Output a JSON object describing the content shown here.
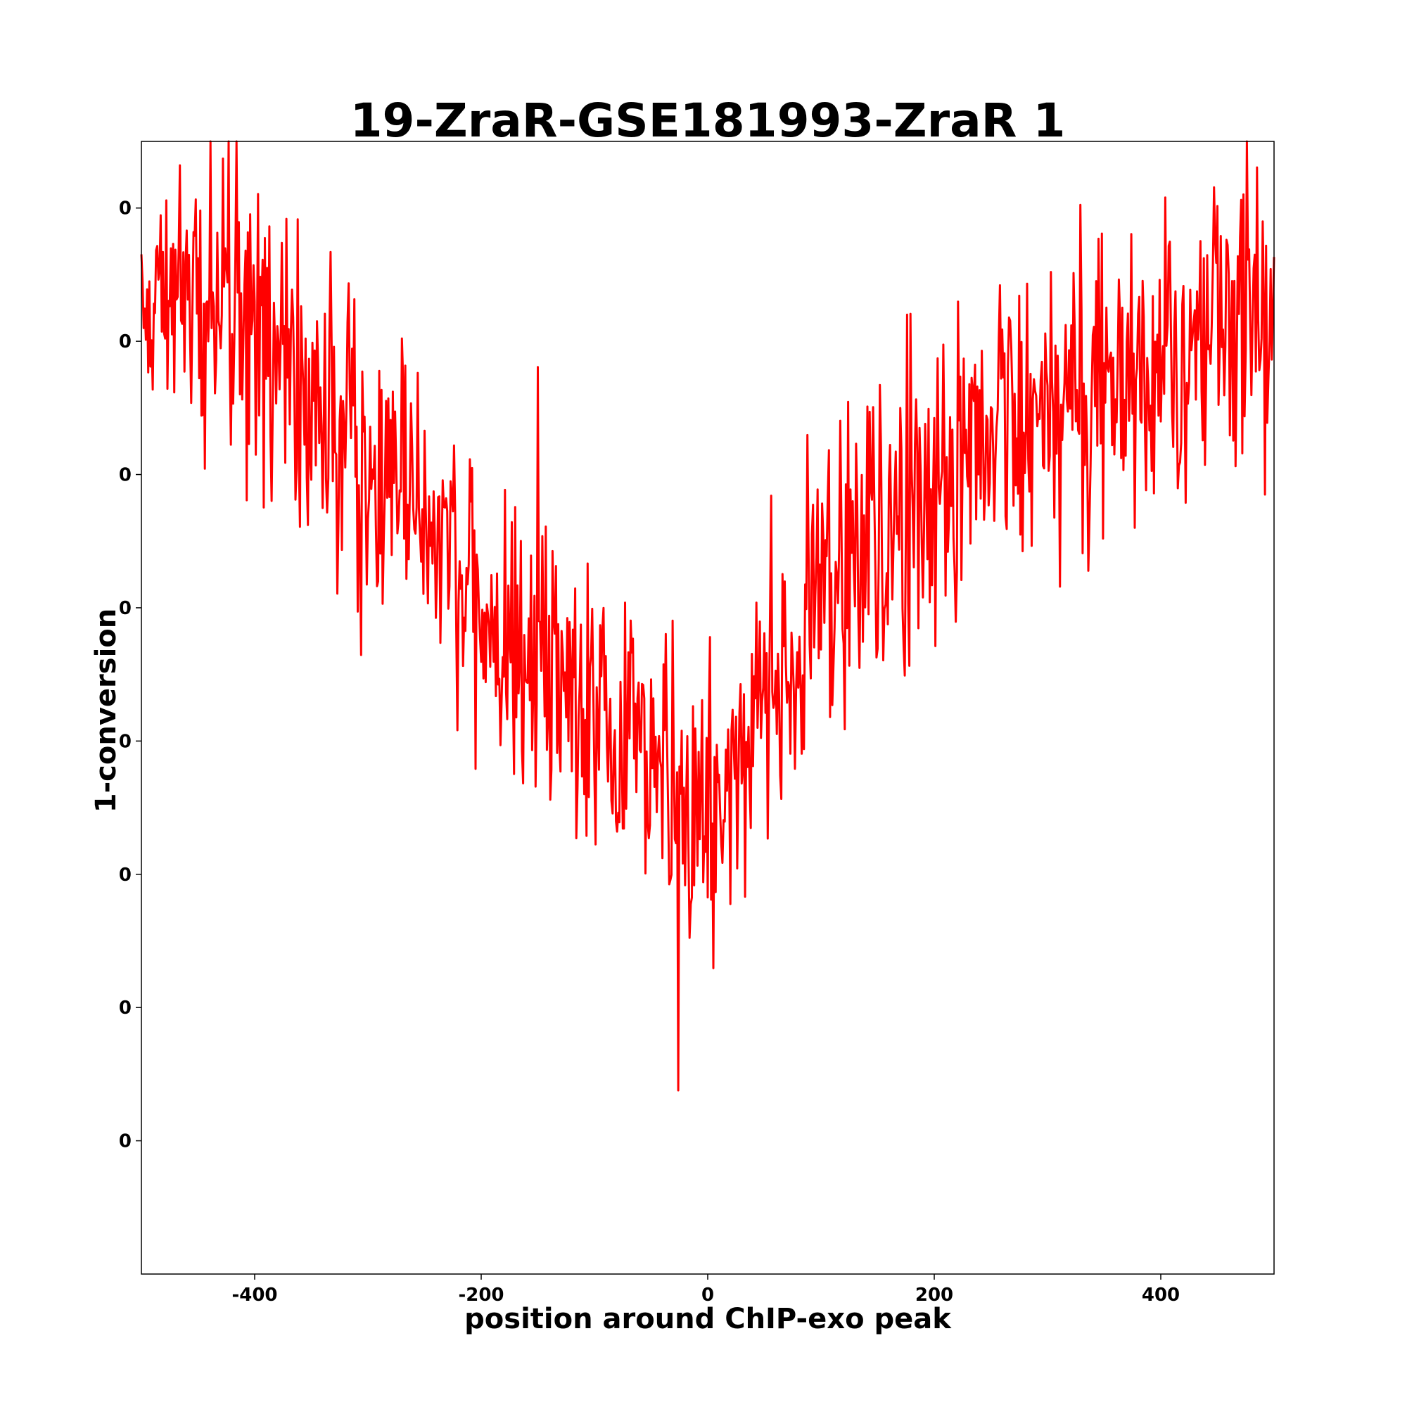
{
  "chart_data": {
    "type": "line",
    "title": "19-ZraR-GSE181993-ZraR 1",
    "xlabel": "position around ChIP-exo peak",
    "ylabel": "1-conversion",
    "xlim": [
      -500,
      500
    ],
    "ylim": [
      0,
      8.5
    ],
    "x_ticks": [
      -400,
      -200,
      0,
      200,
      400
    ],
    "x_tick_labels": [
      "-400",
      "-200",
      "0",
      "200",
      "400"
    ],
    "y_ticks": [
      1,
      2,
      3,
      4,
      5,
      6,
      7,
      8
    ],
    "y_tick_labels": [
      "0",
      "0",
      "0",
      "0",
      "0",
      "0",
      "0",
      "0"
    ],
    "grid": false,
    "series": [
      {
        "color": "#ff0000",
        "profile": {
          "x": [
            -500,
            -450,
            -400,
            -350,
            -300,
            -250,
            -200,
            -150,
            -100,
            -50,
            0,
            50,
            100,
            150,
            200,
            250,
            300,
            350,
            400,
            450,
            500
          ],
          "y": [
            7.3,
            7.4,
            7.1,
            6.5,
            6.0,
            5.7,
            5.0,
            4.6,
            4.2,
            4.0,
            3.2,
            4.4,
            5.0,
            5.5,
            6.0,
            6.3,
            6.5,
            6.6,
            6.9,
            7.1,
            7.3
          ]
        },
        "noise_std": 0.55,
        "sample_count": 1001
      }
    ]
  }
}
